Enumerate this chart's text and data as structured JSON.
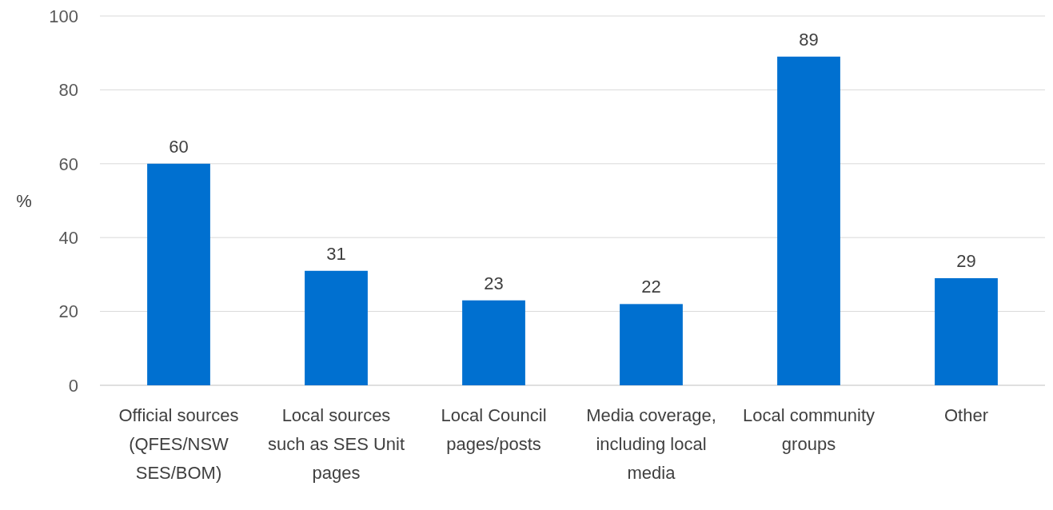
{
  "chart_data": {
    "type": "bar",
    "ylabel": "%",
    "categories": [
      "Official sources (QFES/NSW SES/BOM)",
      "Local sources such as SES Unit pages",
      "Local Council pages/posts",
      "Media coverage, including local media",
      "Local community groups",
      "Other"
    ],
    "values": [
      60,
      31,
      23,
      22,
      89,
      29
    ],
    "color": "#0070d0",
    "ylim": [
      0,
      100
    ],
    "yticks": [
      0,
      20,
      40,
      60,
      80,
      100
    ],
    "grid": "y",
    "data_labels": true
  }
}
